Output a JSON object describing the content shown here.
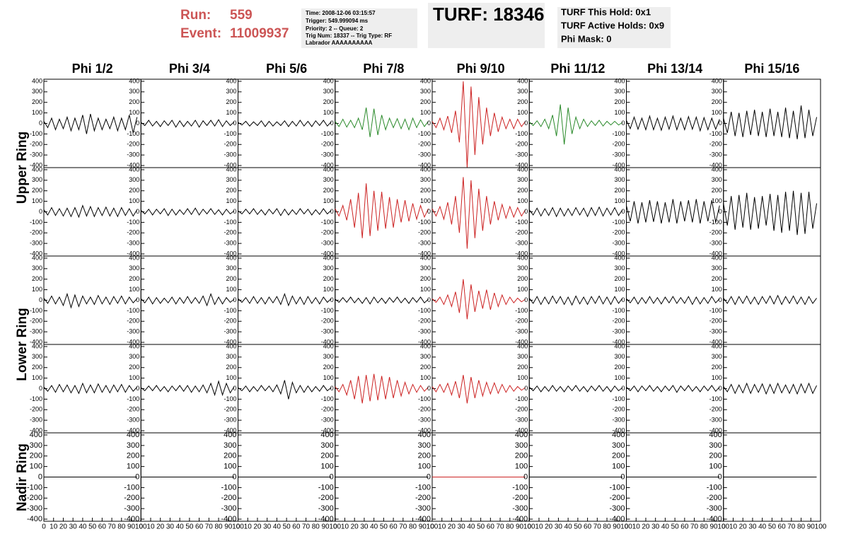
{
  "header": {
    "run_label": "Run:",
    "run": "559",
    "event_label": "Event:",
    "event": "11009937"
  },
  "info": [
    "Time: 2008-12-06 03:15:57",
    "Trigger: 549.999094 ms",
    "Priority: 2 -- Queue: 2",
    "Trig Num: 18337 -- Trig Type: RF",
    "Labrador AAAAAAAAAA"
  ],
  "turf": "TURF: 18346",
  "turf_info": [
    "TURF This Hold: 0x1",
    "TURF Active Holds: 0x9",
    "Phi Mask: 0"
  ],
  "ring_labels": [
    "Upper Ring",
    "Lower Ring",
    "Nadir Ring"
  ],
  "chart_data": {
    "type": "line",
    "columns": [
      "Phi 1/2",
      "Phi 3/4",
      "Phi 5/6",
      "Phi 7/8",
      "Phi 9/10",
      "Phi 11/12",
      "Phi 13/14",
      "Phi 15/16"
    ],
    "x": [
      0,
      4,
      8,
      12,
      16,
      20,
      24,
      28,
      32,
      36,
      40,
      44,
      48,
      52,
      56,
      60,
      64,
      68,
      72,
      76,
      80,
      84,
      88,
      92,
      96
    ],
    "xlim": [
      0,
      100
    ],
    "xticks": [
      0,
      10,
      20,
      30,
      40,
      50,
      60,
      70,
      80,
      90,
      100
    ],
    "ylim": [
      -420,
      420
    ],
    "yticks": [
      -400,
      -300,
      -200,
      -100,
      0,
      100,
      200,
      300,
      400
    ],
    "series": [
      {
        "color": "#000000",
        "values": [
          20,
          -40,
          50,
          -60,
          40,
          -50,
          60,
          -70,
          50,
          -60,
          80,
          -100,
          90,
          -70,
          50,
          -60,
          40,
          -50,
          60,
          -70,
          50,
          -60,
          80,
          -90,
          60
        ]
      },
      {
        "color": "#000000",
        "values": [
          10,
          -20,
          30,
          -25,
          20,
          -30,
          25,
          -20,
          30,
          -35,
          25,
          -30,
          20,
          -25,
          30,
          -35,
          25,
          -20,
          30,
          -25,
          35,
          -30,
          25,
          -20,
          15
        ]
      },
      {
        "color": "#000000",
        "values": [
          10,
          -15,
          20,
          -25,
          15,
          -20,
          25,
          -30,
          20,
          -25,
          15,
          -20,
          25,
          -30,
          20,
          -25,
          30,
          -25,
          20,
          -30,
          25,
          -20,
          30,
          -25,
          15
        ]
      },
      {
        "color": "#2a8a2a",
        "values": [
          20,
          -30,
          40,
          -35,
          30,
          -40,
          50,
          -60,
          150,
          -130,
          140,
          -110,
          80,
          -60,
          50,
          -40,
          45,
          -50,
          40,
          -60,
          50,
          -40,
          35,
          -30,
          20
        ]
      },
      {
        "color": "#cc2222",
        "values": [
          20,
          -40,
          50,
          -60,
          70,
          -90,
          120,
          -180,
          400,
          -420,
          350,
          -300,
          250,
          -200,
          150,
          -120,
          100,
          -80,
          60,
          -50,
          40,
          -50,
          40,
          -30,
          20
        ]
      },
      {
        "color": "#2a8a2a",
        "values": [
          15,
          -20,
          25,
          -30,
          40,
          -50,
          80,
          -120,
          180,
          -200,
          150,
          -100,
          60,
          -50,
          40,
          -30,
          25,
          -20,
          30,
          -25,
          20,
          -15,
          20,
          -15,
          10
        ]
      },
      {
        "color": "#000000",
        "values": [
          30,
          -50,
          60,
          -55,
          50,
          -60,
          70,
          -60,
          50,
          -65,
          60,
          -55,
          70,
          -60,
          50,
          -60,
          65,
          -55,
          60,
          -70,
          55,
          -60,
          50,
          -55,
          40
        ]
      },
      {
        "color": "#000000",
        "values": [
          50,
          -90,
          110,
          -120,
          100,
          -130,
          120,
          -110,
          130,
          -120,
          110,
          -130,
          140,
          -120,
          110,
          -130,
          150,
          -140,
          120,
          -150,
          170,
          -140,
          130,
          -120,
          60
        ]
      },
      {
        "color": "#000000",
        "values": [
          20,
          -30,
          40,
          -35,
          30,
          -40,
          35,
          -45,
          40,
          -50,
          60,
          -40,
          50,
          -45,
          40,
          -35,
          45,
          -40,
          35,
          -45,
          40,
          -35,
          30,
          -40,
          20
        ]
      },
      {
        "color": "#000000",
        "values": [
          15,
          -20,
          25,
          -30,
          25,
          -20,
          30,
          -35,
          25,
          -30,
          20,
          -25,
          30,
          -25,
          35,
          -30,
          25,
          -20,
          30,
          -25,
          20,
          -30,
          25,
          -20,
          10
        ]
      },
      {
        "color": "#000000",
        "values": [
          10,
          -20,
          25,
          -20,
          30,
          -25,
          20,
          -30,
          25,
          -20,
          30,
          -35,
          25,
          -30,
          20,
          -25,
          30,
          -20,
          25,
          -30,
          20,
          -25,
          30,
          -20,
          15
        ]
      },
      {
        "color": "#cc2222",
        "values": [
          30,
          -40,
          60,
          -80,
          120,
          -150,
          180,
          -250,
          270,
          -230,
          200,
          -180,
          190,
          -160,
          140,
          -150,
          120,
          -100,
          110,
          -90,
          80,
          -70,
          60,
          -50,
          30
        ]
      },
      {
        "color": "#cc2222",
        "values": [
          30,
          -40,
          50,
          -70,
          90,
          -120,
          150,
          -200,
          330,
          -350,
          300,
          -250,
          220,
          -180,
          150,
          -120,
          100,
          -80,
          70,
          -60,
          50,
          -50,
          40,
          -40,
          20
        ]
      },
      {
        "color": "#000000",
        "values": [
          20,
          -30,
          35,
          -40,
          30,
          -35,
          40,
          -45,
          35,
          -40,
          30,
          -35,
          40,
          -30,
          35,
          -45,
          40,
          -35,
          45,
          -40,
          35,
          -30,
          40,
          -35,
          20
        ]
      },
      {
        "color": "#000000",
        "values": [
          60,
          -90,
          100,
          -110,
          90,
          -100,
          110,
          -95,
          100,
          -110,
          90,
          -100,
          120,
          -110,
          100,
          -90,
          110,
          -100,
          120,
          -110,
          100,
          -90,
          110,
          -100,
          60
        ]
      },
      {
        "color": "#000000",
        "values": [
          80,
          -130,
          150,
          -170,
          160,
          -150,
          180,
          -170,
          140,
          -160,
          150,
          -130,
          170,
          -180,
          160,
          -200,
          190,
          -180,
          200,
          -220,
          180,
          -210,
          190,
          -160,
          80
        ]
      },
      {
        "color": "#000000",
        "values": [
          20,
          -30,
          40,
          -35,
          30,
          -50,
          60,
          -70,
          50,
          -60,
          40,
          -35,
          30,
          -40,
          45,
          -35,
          30,
          -40,
          35,
          -30,
          40,
          -35,
          30,
          -25,
          15
        ]
      },
      {
        "color": "#000000",
        "values": [
          15,
          -25,
          30,
          -35,
          25,
          -30,
          20,
          -25,
          30,
          -35,
          25,
          -30,
          35,
          -30,
          25,
          -30,
          40,
          -50,
          60,
          -40,
          30,
          -35,
          25,
          -20,
          10
        ]
      },
      {
        "color": "#000000",
        "values": [
          15,
          -20,
          25,
          -30,
          35,
          -30,
          25,
          -35,
          30,
          -25,
          35,
          -40,
          60,
          -50,
          40,
          -35,
          30,
          -40,
          35,
          -30,
          25,
          -35,
          30,
          -20,
          15
        ]
      },
      {
        "color": "#000000",
        "values": [
          10,
          -20,
          25,
          -20,
          30,
          -25,
          20,
          -30,
          25,
          -35,
          30,
          -25,
          20,
          -30,
          25,
          -20,
          30,
          -25,
          20,
          -30,
          25,
          -20,
          30,
          -25,
          10
        ]
      },
      {
        "color": "#cc2222",
        "values": [
          15,
          -20,
          30,
          -40,
          50,
          -60,
          80,
          -120,
          200,
          -180,
          150,
          -110,
          90,
          -80,
          100,
          -90,
          70,
          -60,
          50,
          -40,
          30,
          -25,
          20,
          -15,
          10
        ]
      },
      {
        "color": "#000000",
        "values": [
          20,
          -30,
          35,
          -40,
          30,
          -35,
          40,
          -30,
          35,
          -40,
          30,
          -45,
          40,
          -35,
          30,
          -40,
          35,
          -30,
          40,
          -35,
          30,
          -40,
          35,
          -30,
          20
        ]
      },
      {
        "color": "#000000",
        "values": [
          15,
          -25,
          30,
          -35,
          25,
          -30,
          35,
          -30,
          25,
          -35,
          30,
          -25,
          35,
          -30,
          25,
          -30,
          35,
          -40,
          30,
          -35,
          25,
          -30,
          35,
          -25,
          15
        ]
      },
      {
        "color": "#000000",
        "values": [
          20,
          -30,
          35,
          -40,
          35,
          -30,
          40,
          -35,
          30,
          -40,
          35,
          -30,
          40,
          -35,
          45,
          -40,
          35,
          -30,
          40,
          -35,
          30,
          -40,
          35,
          -30,
          20
        ]
      },
      {
        "color": "#000000",
        "values": [
          15,
          -25,
          30,
          -35,
          40,
          -30,
          35,
          -40,
          30,
          -45,
          50,
          -40,
          35,
          -40,
          45,
          -35,
          30,
          -40,
          35,
          -30,
          40,
          -35,
          30,
          -25,
          15
        ]
      },
      {
        "color": "#000000",
        "values": [
          10,
          -20,
          25,
          -20,
          30,
          -25,
          20,
          -30,
          25,
          -20,
          30,
          -25,
          30,
          -35,
          25,
          -30,
          35,
          -40,
          50,
          -60,
          70,
          -60,
          50,
          -40,
          20
        ]
      },
      {
        "color": "#000000",
        "values": [
          10,
          -20,
          25,
          -30,
          20,
          -25,
          30,
          -20,
          25,
          -30,
          35,
          -50,
          80,
          -100,
          60,
          -40,
          30,
          -35,
          25,
          -30,
          20,
          -25,
          30,
          -20,
          10
        ]
      },
      {
        "color": "#cc2222",
        "values": [
          20,
          -30,
          40,
          -60,
          80,
          -100,
          120,
          -140,
          130,
          -120,
          140,
          -110,
          120,
          -100,
          110,
          -90,
          80,
          -70,
          60,
          -50,
          40,
          -35,
          30,
          -25,
          15
        ]
      },
      {
        "color": "#cc2222",
        "values": [
          20,
          -30,
          40,
          -35,
          50,
          -60,
          70,
          -90,
          130,
          -140,
          110,
          -90,
          80,
          -70,
          60,
          -50,
          55,
          -45,
          40,
          -35,
          30,
          -25,
          20,
          -15,
          10
        ]
      },
      {
        "color": "#000000",
        "values": [
          15,
          -20,
          25,
          -30,
          20,
          -25,
          30,
          -25,
          20,
          -30,
          25,
          -20,
          30,
          -25,
          20,
          -30,
          25,
          -20,
          30,
          -25,
          20,
          -30,
          25,
          -20,
          10
        ]
      },
      {
        "color": "#000000",
        "values": [
          15,
          -20,
          25,
          -30,
          25,
          -20,
          30,
          -25,
          20,
          -30,
          25,
          -20,
          30,
          -35,
          25,
          -20,
          30,
          -25,
          20,
          -30,
          25,
          -20,
          30,
          -25,
          15
        ]
      },
      {
        "color": "#000000",
        "values": [
          20,
          -30,
          40,
          -45,
          35,
          -40,
          50,
          -45,
          40,
          -35,
          45,
          -50,
          40,
          -45,
          50,
          -40,
          35,
          -45,
          40,
          -50,
          45,
          -40,
          50,
          -45,
          30
        ]
      },
      {
        "color": "#000000",
        "values": [
          0,
          0,
          0,
          0,
          0,
          0,
          0,
          0,
          0,
          0,
          0,
          0,
          0,
          0,
          0,
          0,
          0,
          0,
          0,
          0,
          0,
          0,
          0,
          0,
          0
        ]
      },
      {
        "color": "#000000",
        "values": [
          0,
          0,
          0,
          0,
          0,
          0,
          0,
          0,
          0,
          0,
          0,
          0,
          0,
          0,
          0,
          0,
          0,
          0,
          0,
          0,
          0,
          0,
          0,
          0,
          0
        ]
      },
      {
        "color": "#000000",
        "values": [
          0,
          0,
          0,
          0,
          0,
          0,
          0,
          0,
          0,
          0,
          0,
          0,
          0,
          0,
          0,
          0,
          0,
          0,
          0,
          0,
          0,
          0,
          0,
          0,
          0
        ]
      },
      {
        "color": "#000000",
        "values": [
          0,
          0,
          0,
          0,
          0,
          0,
          0,
          0,
          0,
          0,
          0,
          0,
          0,
          0,
          0,
          0,
          0,
          0,
          0,
          0,
          0,
          0,
          0,
          0,
          0
        ]
      },
      {
        "color": "#cc2222",
        "values": [
          0,
          0,
          0,
          0,
          0,
          0,
          0,
          0,
          0,
          0,
          0,
          0,
          0,
          0,
          0,
          0,
          0,
          0,
          0,
          0,
          0,
          0,
          0,
          0,
          0
        ]
      },
      {
        "color": "#000000",
        "values": [
          0,
          0,
          0,
          0,
          0,
          0,
          0,
          0,
          0,
          0,
          0,
          0,
          0,
          0,
          0,
          0,
          0,
          0,
          0,
          0,
          0,
          0,
          0,
          0,
          0
        ]
      },
      {
        "color": "#000000",
        "values": [
          0,
          0,
          0,
          0,
          0,
          0,
          0,
          0,
          0,
          0,
          0,
          0,
          0,
          0,
          0,
          0,
          0,
          0,
          0,
          0,
          0,
          0,
          0,
          0,
          0
        ]
      },
      {
        "color": "#000000",
        "values": [
          0,
          0,
          0,
          0,
          0,
          0,
          0,
          0,
          0,
          0,
          0,
          0,
          0,
          0,
          0,
          0,
          0,
          0,
          0,
          0,
          0,
          0,
          0,
          0,
          0
        ]
      }
    ]
  }
}
